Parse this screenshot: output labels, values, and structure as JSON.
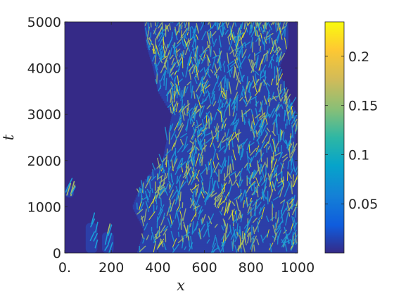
{
  "chart_data": {
    "type": "heatmap",
    "title": "",
    "xlabel": "x",
    "ylabel": "t",
    "xlim": [
      0,
      1000
    ],
    "ylim": [
      0,
      5000
    ],
    "x_ticks": [
      0,
      200,
      400,
      600,
      800,
      1000
    ],
    "x_tick_labels": [
      "0.",
      "200",
      "400",
      "600",
      "800",
      "1000"
    ],
    "y_ticks": [
      0,
      1000,
      2000,
      3000,
      4000,
      5000
    ],
    "y_tick_labels": [
      "0",
      "1000",
      "2000",
      "3000",
      "4000",
      "5000"
    ],
    "colorbar": {
      "colormap": "parula",
      "range": [
        0,
        0.235
      ],
      "ticks": [
        0.05,
        0.1,
        0.15,
        0.2
      ],
      "tick_labels": [
        "0.05",
        "0.1",
        "0.15",
        "0.2"
      ]
    },
    "turbulent_region_envelope": {
      "t": [
        0,
        500,
        1000,
        1500,
        2000,
        2500,
        3000,
        3500,
        4000,
        4500,
        5000
      ],
      "x_left": [
        310,
        340,
        290,
        330,
        420,
        440,
        460,
        400,
        380,
        350,
        340
      ],
      "x_right": [
        1000,
        1000,
        1000,
        1000,
        1000,
        990,
        1000,
        950,
        920,
        960,
        960
      ]
    },
    "isolated_patches": [
      {
        "x": [
          0,
          40
        ],
        "t": [
          1200,
          1450
        ]
      },
      {
        "x": [
          90,
          140
        ],
        "t": [
          0,
          650
        ]
      },
      {
        "x": [
          160,
          210
        ],
        "t": [
          0,
          450
        ]
      }
    ]
  },
  "colors": {
    "background": "#352a87",
    "low": "#2c3fa8",
    "mid": "#1b9dd9",
    "high": "#a5be6a",
    "peak": "#f9fb0e"
  }
}
